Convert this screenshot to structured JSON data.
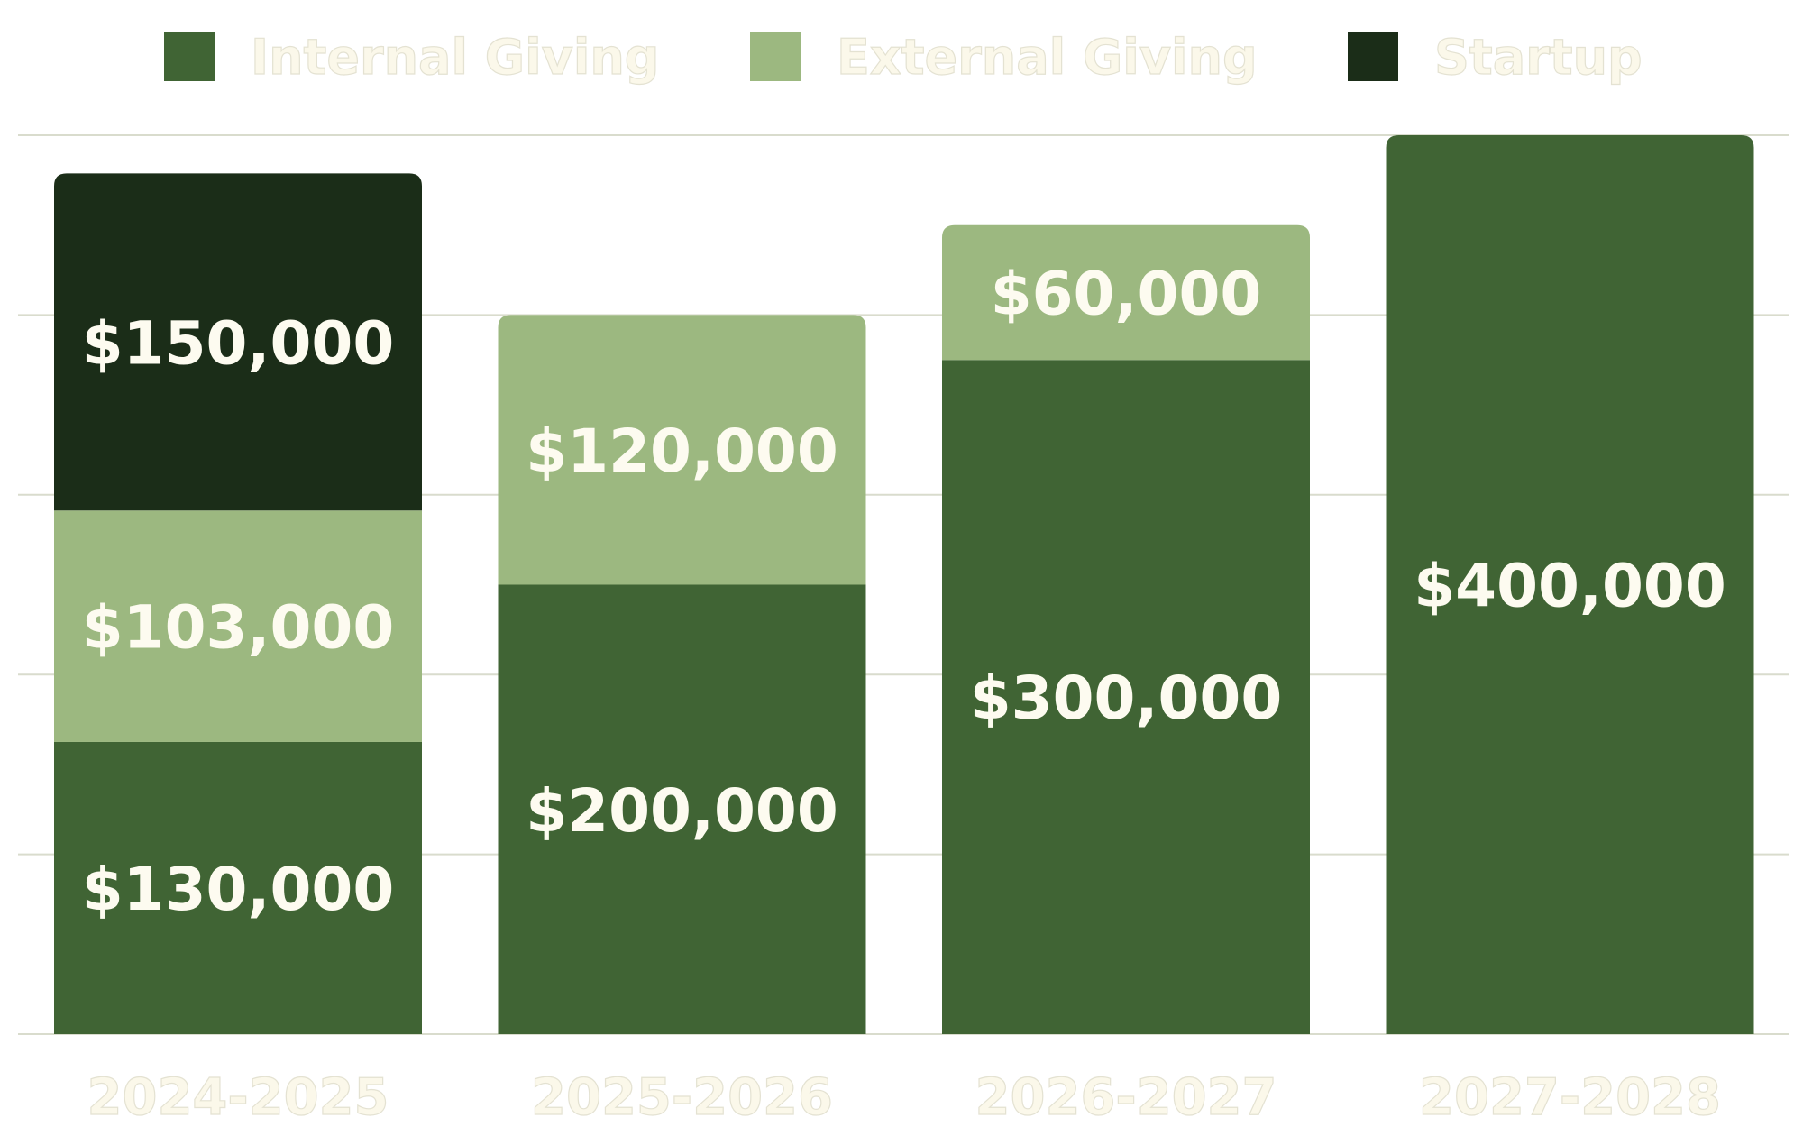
{
  "chart_data": {
    "type": "bar",
    "stacked": true,
    "categories": [
      "2024-2025",
      "2025-2026",
      "2026-2027",
      "2027-2028"
    ],
    "series": [
      {
        "name": "Internal Giving",
        "color": "#406434",
        "values": [
          130000,
          200000,
          300000,
          400000
        ]
      },
      {
        "name": "External Giving",
        "color": "#9cb880",
        "values": [
          103000,
          120000,
          60000,
          null
        ]
      },
      {
        "name": "Startup",
        "color": "#1b2d18",
        "values": [
          150000,
          null,
          null,
          null
        ]
      }
    ],
    "data_labels": [
      [
        "$130,000",
        "$200,000",
        "$300,000",
        "$400,000"
      ],
      [
        "$103,000",
        "$120,000",
        "$60,000",
        ""
      ],
      [
        "$150,000",
        "",
        "",
        ""
      ]
    ],
    "legend": {
      "placement": "top"
    },
    "ylim": [
      0,
      400000
    ],
    "grid": true,
    "title": "",
    "xlabel": "",
    "ylabel": ""
  }
}
